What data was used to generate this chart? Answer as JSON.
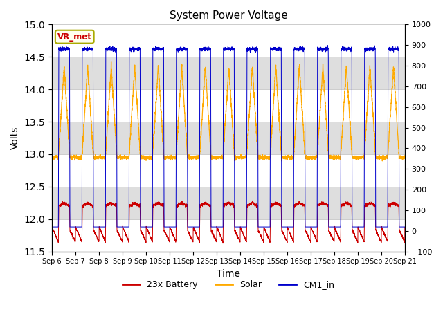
{
  "title": "System Power Voltage",
  "xlabel": "Time",
  "ylabel_left": "Volts",
  "ylim_left": [
    11.5,
    15.0
  ],
  "ylim_right": [
    -100,
    1000
  ],
  "yticks_left": [
    11.5,
    12.0,
    12.5,
    13.0,
    13.5,
    14.0,
    14.5,
    15.0
  ],
  "yticks_right": [
    -100,
    0,
    100,
    200,
    300,
    400,
    500,
    600,
    700,
    800,
    900,
    1000
  ],
  "xstart_day": 6,
  "num_days": 15,
  "annotation_text": "VR_met",
  "annotation_color": "#cc0000",
  "annotation_bg": "#ffffee",
  "annotation_edge": "#aaaa00",
  "bg_band_color": "#dedede",
  "battery_color": "#cc0000",
  "solar_color": "#ffaa00",
  "cm1_color": "#0000cc",
  "battery_label": "23x Battery",
  "solar_label": "Solar",
  "cm1_label": "CM1_in",
  "sunrise": 0.27,
  "sunset": 0.76,
  "cm1_night": 11.88,
  "cm1_day": 14.62,
  "solar_night": 12.95,
  "solar_day_peak": 14.35,
  "battery_night_low": 11.65,
  "battery_night_base": 11.88,
  "battery_day_high": 12.25
}
